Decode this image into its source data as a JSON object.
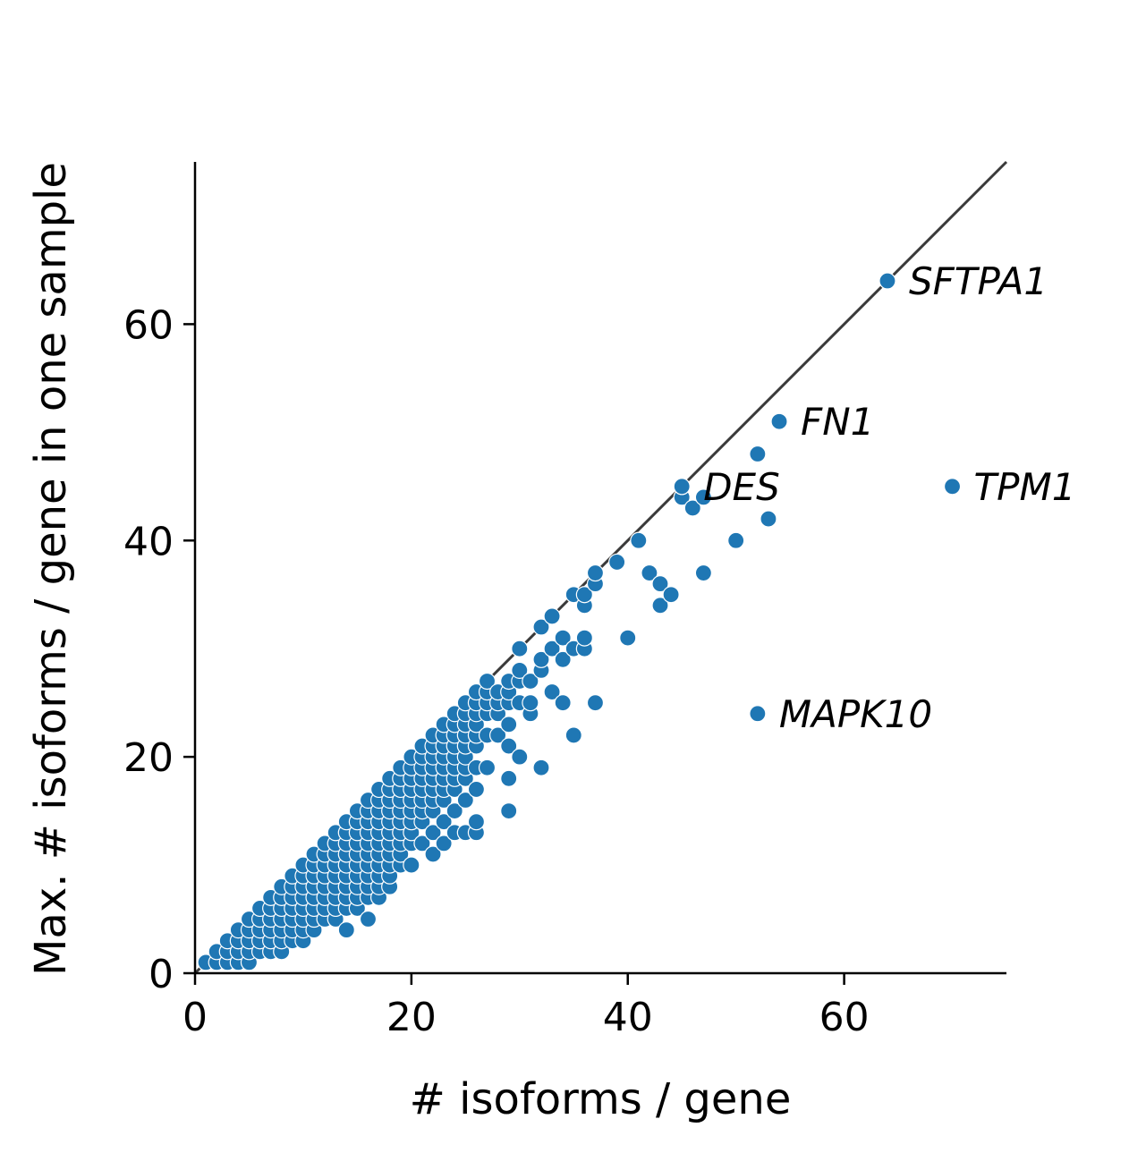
{
  "chart_data": {
    "type": "scatter",
    "title": "",
    "xlabel": "# isoforms / gene",
    "ylabel": "Max. # isoforms / gene in one sample",
    "xlim": [
      0,
      75
    ],
    "ylim": [
      0,
      75
    ],
    "xticks": [
      0,
      20,
      40,
      60
    ],
    "yticks": [
      0,
      20,
      40,
      60
    ],
    "grid": false,
    "reference_line": {
      "type": "identity",
      "from": [
        0,
        0
      ],
      "to": [
        75,
        75
      ],
      "color": "#3a3a3a"
    },
    "point_color": "#1f77b4",
    "points": [
      [
        1,
        1
      ],
      [
        2,
        1
      ],
      [
        2,
        2
      ],
      [
        3,
        1
      ],
      [
        3,
        2
      ],
      [
        3,
        3
      ],
      [
        4,
        1
      ],
      [
        4,
        2
      ],
      [
        4,
        3
      ],
      [
        4,
        4
      ],
      [
        5,
        1
      ],
      [
        5,
        2
      ],
      [
        5,
        3
      ],
      [
        5,
        4
      ],
      [
        5,
        5
      ],
      [
        6,
        2
      ],
      [
        6,
        3
      ],
      [
        6,
        4
      ],
      [
        6,
        5
      ],
      [
        6,
        6
      ],
      [
        7,
        2
      ],
      [
        7,
        3
      ],
      [
        7,
        4
      ],
      [
        7,
        5
      ],
      [
        7,
        6
      ],
      [
        7,
        7
      ],
      [
        8,
        2
      ],
      [
        8,
        3
      ],
      [
        8,
        4
      ],
      [
        8,
        5
      ],
      [
        8,
        6
      ],
      [
        8,
        7
      ],
      [
        8,
        8
      ],
      [
        9,
        3
      ],
      [
        9,
        4
      ],
      [
        9,
        5
      ],
      [
        9,
        6
      ],
      [
        9,
        7
      ],
      [
        9,
        8
      ],
      [
        9,
        9
      ],
      [
        10,
        3
      ],
      [
        10,
        4
      ],
      [
        10,
        5
      ],
      [
        10,
        6
      ],
      [
        10,
        7
      ],
      [
        10,
        8
      ],
      [
        10,
        9
      ],
      [
        10,
        10
      ],
      [
        11,
        4
      ],
      [
        11,
        5
      ],
      [
        11,
        6
      ],
      [
        11,
        7
      ],
      [
        11,
        8
      ],
      [
        11,
        9
      ],
      [
        11,
        10
      ],
      [
        11,
        11
      ],
      [
        12,
        5
      ],
      [
        12,
        6
      ],
      [
        12,
        7
      ],
      [
        12,
        8
      ],
      [
        12,
        9
      ],
      [
        12,
        10
      ],
      [
        12,
        11
      ],
      [
        12,
        12
      ],
      [
        13,
        5
      ],
      [
        13,
        6
      ],
      [
        13,
        7
      ],
      [
        13,
        8
      ],
      [
        13,
        9
      ],
      [
        13,
        10
      ],
      [
        13,
        11
      ],
      [
        13,
        12
      ],
      [
        13,
        13
      ],
      [
        14,
        4
      ],
      [
        14,
        6
      ],
      [
        14,
        7
      ],
      [
        14,
        8
      ],
      [
        14,
        9
      ],
      [
        14,
        10
      ],
      [
        14,
        11
      ],
      [
        14,
        12
      ],
      [
        14,
        13
      ],
      [
        14,
        14
      ],
      [
        15,
        6
      ],
      [
        15,
        7
      ],
      [
        15,
        8
      ],
      [
        15,
        9
      ],
      [
        15,
        10
      ],
      [
        15,
        11
      ],
      [
        15,
        12
      ],
      [
        15,
        13
      ],
      [
        15,
        14
      ],
      [
        15,
        15
      ],
      [
        16,
        5
      ],
      [
        16,
        7
      ],
      [
        16,
        8
      ],
      [
        16,
        9
      ],
      [
        16,
        10
      ],
      [
        16,
        11
      ],
      [
        16,
        12
      ],
      [
        16,
        13
      ],
      [
        16,
        14
      ],
      [
        16,
        15
      ],
      [
        16,
        16
      ],
      [
        17,
        7
      ],
      [
        17,
        8
      ],
      [
        17,
        9
      ],
      [
        17,
        10
      ],
      [
        17,
        11
      ],
      [
        17,
        12
      ],
      [
        17,
        13
      ],
      [
        17,
        14
      ],
      [
        17,
        15
      ],
      [
        17,
        16
      ],
      [
        17,
        17
      ],
      [
        18,
        8
      ],
      [
        18,
        9
      ],
      [
        18,
        10
      ],
      [
        18,
        11
      ],
      [
        18,
        12
      ],
      [
        18,
        13
      ],
      [
        18,
        14
      ],
      [
        18,
        15
      ],
      [
        18,
        16
      ],
      [
        18,
        17
      ],
      [
        18,
        18
      ],
      [
        19,
        10
      ],
      [
        19,
        11
      ],
      [
        19,
        12
      ],
      [
        19,
        13
      ],
      [
        19,
        14
      ],
      [
        19,
        15
      ],
      [
        19,
        16
      ],
      [
        19,
        17
      ],
      [
        19,
        18
      ],
      [
        19,
        19
      ],
      [
        20,
        10
      ],
      [
        20,
        12
      ],
      [
        20,
        13
      ],
      [
        20,
        14
      ],
      [
        20,
        15
      ],
      [
        20,
        16
      ],
      [
        20,
        17
      ],
      [
        20,
        18
      ],
      [
        20,
        19
      ],
      [
        20,
        20
      ],
      [
        21,
        12
      ],
      [
        21,
        14
      ],
      [
        21,
        15
      ],
      [
        21,
        16
      ],
      [
        21,
        17
      ],
      [
        21,
        18
      ],
      [
        21,
        19
      ],
      [
        21,
        20
      ],
      [
        21,
        21
      ],
      [
        22,
        11
      ],
      [
        22,
        13
      ],
      [
        22,
        15
      ],
      [
        22,
        16
      ],
      [
        22,
        17
      ],
      [
        22,
        18
      ],
      [
        22,
        19
      ],
      [
        22,
        20
      ],
      [
        22,
        21
      ],
      [
        22,
        22
      ],
      [
        23,
        12
      ],
      [
        23,
        14
      ],
      [
        23,
        16
      ],
      [
        23,
        17
      ],
      [
        23,
        18
      ],
      [
        23,
        19
      ],
      [
        23,
        20
      ],
      [
        23,
        21
      ],
      [
        23,
        22
      ],
      [
        23,
        23
      ],
      [
        24,
        13
      ],
      [
        24,
        15
      ],
      [
        24,
        17
      ],
      [
        24,
        18
      ],
      [
        24,
        19
      ],
      [
        24,
        20
      ],
      [
        24,
        21
      ],
      [
        24,
        22
      ],
      [
        24,
        23
      ],
      [
        24,
        24
      ],
      [
        25,
        13
      ],
      [
        25,
        16
      ],
      [
        25,
        18
      ],
      [
        25,
        19
      ],
      [
        25,
        20
      ],
      [
        25,
        21
      ],
      [
        25,
        22
      ],
      [
        25,
        23
      ],
      [
        25,
        24
      ],
      [
        25,
        25
      ],
      [
        26,
        13
      ],
      [
        26,
        14
      ],
      [
        26,
        17
      ],
      [
        26,
        19
      ],
      [
        26,
        21
      ],
      [
        26,
        22
      ],
      [
        26,
        23
      ],
      [
        26,
        24
      ],
      [
        26,
        25
      ],
      [
        26,
        26
      ],
      [
        27,
        19
      ],
      [
        27,
        22
      ],
      [
        27,
        24
      ],
      [
        27,
        25
      ],
      [
        27,
        26
      ],
      [
        27,
        27
      ],
      [
        28,
        22
      ],
      [
        28,
        24
      ],
      [
        28,
        25
      ],
      [
        28,
        26
      ],
      [
        29,
        15
      ],
      [
        29,
        18
      ],
      [
        29,
        21
      ],
      [
        29,
        23
      ],
      [
        29,
        25
      ],
      [
        29,
        26
      ],
      [
        29,
        27
      ],
      [
        30,
        20
      ],
      [
        30,
        25
      ],
      [
        30,
        27
      ],
      [
        30,
        28
      ],
      [
        30,
        30
      ],
      [
        31,
        24
      ],
      [
        31,
        25
      ],
      [
        31,
        27
      ],
      [
        32,
        19
      ],
      [
        32,
        28
      ],
      [
        32,
        29
      ],
      [
        32,
        32
      ],
      [
        33,
        26
      ],
      [
        33,
        30
      ],
      [
        33,
        33
      ],
      [
        34,
        25
      ],
      [
        34,
        29
      ],
      [
        34,
        31
      ],
      [
        35,
        22
      ],
      [
        35,
        30
      ],
      [
        35,
        35
      ],
      [
        36,
        30
      ],
      [
        36,
        31
      ],
      [
        36,
        34
      ],
      [
        36,
        35
      ],
      [
        37,
        25
      ],
      [
        37,
        36
      ],
      [
        37,
        37
      ],
      [
        39,
        38
      ],
      [
        40,
        31
      ],
      [
        41,
        40
      ],
      [
        42,
        37
      ],
      [
        43,
        34
      ],
      [
        43,
        36
      ],
      [
        44,
        35
      ],
      [
        45,
        44
      ],
      [
        45,
        45
      ],
      [
        46,
        43
      ],
      [
        47,
        37
      ],
      [
        47,
        44
      ],
      [
        50,
        40
      ],
      [
        52,
        48
      ],
      [
        53,
        42
      ]
    ],
    "labeled_points": [
      {
        "x": 64,
        "y": 64,
        "label": "SFTPA1"
      },
      {
        "x": 54,
        "y": 51,
        "label": "FN1"
      },
      {
        "x": 70,
        "y": 45,
        "label": "TPM1"
      },
      {
        "x": 45,
        "y": 45,
        "label": "DES"
      },
      {
        "x": 52,
        "y": 24,
        "label": "MAPK10"
      }
    ]
  }
}
